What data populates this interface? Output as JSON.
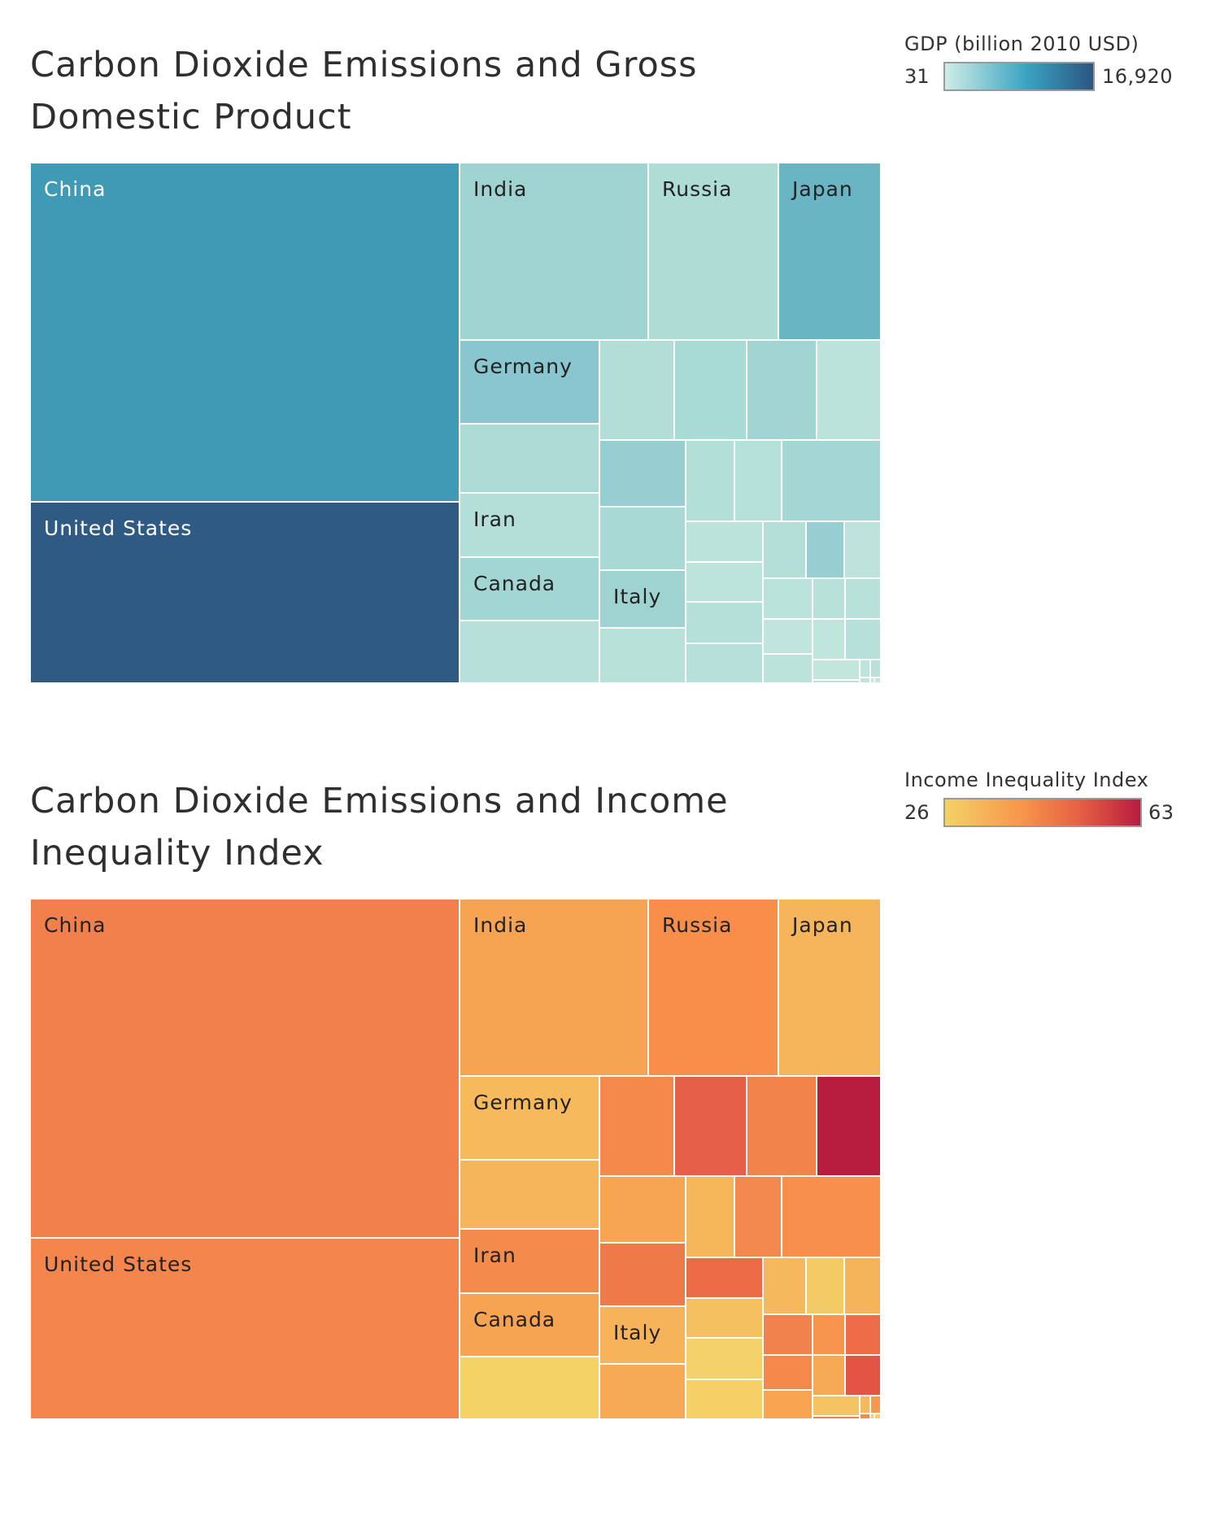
{
  "chart_data": [
    {
      "type": "treemap",
      "title": "Carbon Dioxide Emissions and Gross Domestic Product",
      "color_legend": {
        "title": "GDP (billion 2010 USD)",
        "min_label": "31",
        "max_label": "16,920",
        "colors": [
          "#cfece6",
          "#3aa3c2",
          "#2c5582"
        ]
      },
      "cells": [
        {
          "label": "China",
          "color": "#3f9ab6",
          "label_color": "#ffffff"
        },
        {
          "label": "United States",
          "color": "#2e5a84",
          "label_color": "#ffffff"
        },
        {
          "label": "India",
          "color": "#9ed3d1",
          "label_color": "#222222"
        },
        {
          "label": "Russia",
          "color": "#aeddd6",
          "label_color": "#222222"
        },
        {
          "label": "Japan",
          "color": "#6ab5c4",
          "label_color": "#222222"
        },
        {
          "label": "Germany",
          "color": "#8ac6d0",
          "label_color": "#222222"
        },
        {
          "label": "",
          "color": "#b3ded8"
        },
        {
          "label": "",
          "color": "#a9dbd6"
        },
        {
          "label": "",
          "color": "#a2d5d2"
        },
        {
          "label": "",
          "color": "#bbe3da"
        },
        {
          "label": "",
          "color": "#acdbd5"
        },
        {
          "label": "",
          "color": "#97ced1"
        },
        {
          "label": "",
          "color": "#b3dfd9"
        },
        {
          "label": "",
          "color": "#b6e0da"
        },
        {
          "label": "",
          "color": "#a4d7d4"
        },
        {
          "label": "Iran",
          "color": "#b3dfd8",
          "label_color": "#222222"
        },
        {
          "label": "",
          "color": "#a8d9d4"
        },
        {
          "label": "Canada",
          "color": "#a2d6d3",
          "label_color": "#222222"
        },
        {
          "label": "",
          "color": "#b6e0d9"
        },
        {
          "label": "Italy",
          "color": "#9fd3d2",
          "label_color": "#222222"
        },
        {
          "label": "",
          "color": "#b8e1da"
        },
        {
          "label": "",
          "color": "#bbe3da"
        },
        {
          "label": "",
          "color": "#b3dfd8"
        },
        {
          "label": "",
          "color": "#97ced1"
        },
        {
          "label": "",
          "color": "#bde3da"
        },
        {
          "label": "",
          "color": "#bde4db"
        },
        {
          "label": "",
          "color": "#b5e0d9"
        },
        {
          "label": "",
          "color": "#b6e0d9"
        },
        {
          "label": "",
          "color": "#b8e2da"
        },
        {
          "label": "",
          "color": "#b8e1da"
        },
        {
          "label": "",
          "color": "#b7e1d9"
        },
        {
          "label": "",
          "color": "#c0e5dc"
        },
        {
          "label": "",
          "color": "#bce3da"
        },
        {
          "label": "",
          "color": "#bfe5dc"
        },
        {
          "label": "",
          "color": "#b6e0d9"
        },
        {
          "label": "",
          "color": "#c2e6dc"
        },
        {
          "label": "",
          "color": "#b9e2da"
        },
        {
          "label": "",
          "color": "#bde4db"
        },
        {
          "label": "",
          "color": "#b7e1da"
        },
        {
          "label": "",
          "color": "#bfe5db"
        },
        {
          "label": "",
          "color": "#c1e6dd"
        },
        {
          "label": "",
          "color": "#bce3da"
        },
        {
          "label": "",
          "color": "#c3e7dd"
        }
      ]
    },
    {
      "type": "treemap",
      "title": "Carbon Dioxide Emissions and Income Inequality Index",
      "color_legend": {
        "title": "Income Inequality Index",
        "min_label": "26",
        "max_label": "63",
        "colors": [
          "#f4d266",
          "#f7944a",
          "#e55d45",
          "#b71c40"
        ]
      },
      "cells": [
        {
          "label": "China",
          "color": "#f2804c",
          "label_color": "#222222"
        },
        {
          "label": "United States",
          "color": "#f4854c",
          "label_color": "#222222"
        },
        {
          "label": "India",
          "color": "#f7a452",
          "label_color": "#222222"
        },
        {
          "label": "Russia",
          "color": "#f98e4b",
          "label_color": "#222222"
        },
        {
          "label": "Japan",
          "color": "#f6b55a",
          "label_color": "#222222"
        },
        {
          "label": "Germany",
          "color": "#f6b95c",
          "label_color": "#222222"
        },
        {
          "label": "",
          "color": "#f4894b"
        },
        {
          "label": "",
          "color": "#e65f48"
        },
        {
          "label": "",
          "color": "#f1834b"
        },
        {
          "label": "",
          "color": "#b71c3e"
        },
        {
          "label": "",
          "color": "#f6b55a"
        },
        {
          "label": "",
          "color": "#f7a552"
        },
        {
          "label": "",
          "color": "#f6b65a"
        },
        {
          "label": "",
          "color": "#f38a4d"
        },
        {
          "label": "",
          "color": "#f98f4c"
        },
        {
          "label": "Iran",
          "color": "#f28b4c",
          "label_color": "#222222"
        },
        {
          "label": "",
          "color": "#ee7a4a"
        },
        {
          "label": "Canada",
          "color": "#f7a452",
          "label_color": "#222222"
        },
        {
          "label": "",
          "color": "#f4d266"
        },
        {
          "label": "Italy",
          "color": "#f7b35a",
          "label_color": "#222222"
        },
        {
          "label": "",
          "color": "#f6aa56"
        },
        {
          "label": "",
          "color": "#eb6b47"
        },
        {
          "label": "",
          "color": "#f6b85c"
        },
        {
          "label": "",
          "color": "#f4ca64"
        },
        {
          "label": "",
          "color": "#f6b45a"
        },
        {
          "label": "",
          "color": "#f4c060"
        },
        {
          "label": "",
          "color": "#f4d169"
        },
        {
          "label": "",
          "color": "#f4d066"
        },
        {
          "label": "",
          "color": "#f2824d"
        },
        {
          "label": "",
          "color": "#f7954d"
        },
        {
          "label": "",
          "color": "#ed6d48"
        },
        {
          "label": "",
          "color": "#f4894b"
        },
        {
          "label": "",
          "color": "#f8a451"
        },
        {
          "label": "",
          "color": "#f7aa55"
        },
        {
          "label": "",
          "color": "#e25545"
        },
        {
          "label": "",
          "color": "#f4c460"
        },
        {
          "label": "",
          "color": "#f1804b"
        },
        {
          "label": "",
          "color": "#f7b75c"
        },
        {
          "label": "",
          "color": "#f59850"
        },
        {
          "label": "",
          "color": "#f08a4d"
        },
        {
          "label": "",
          "color": "#f4ce66"
        },
        {
          "label": "",
          "color": "#f7ae57"
        },
        {
          "label": "",
          "color": "#f4d066"
        }
      ]
    }
  ]
}
